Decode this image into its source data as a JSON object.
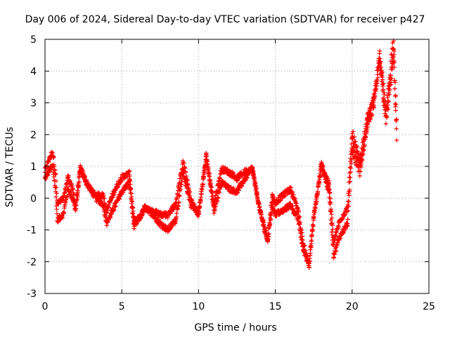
{
  "chart_data": {
    "type": "scatter",
    "title": "Day 006 of 2024, Sidereal Day-to-day VTEC variation (SDTVAR) for receiver p427",
    "xlabel": "GPS time / hours",
    "ylabel": "SDTVAR / TECUs",
    "xlim": [
      0,
      25
    ],
    "ylim": [
      -3,
      5
    ],
    "x_ticks": [
      "0",
      "5",
      "10",
      "15",
      "20",
      "25"
    ],
    "y_ticks": [
      "-3",
      "-2",
      "-1",
      "0",
      "1",
      "2",
      "3",
      "4",
      "5"
    ],
    "grid": true,
    "marker": "+",
    "series": [
      {
        "name": "SDTVAR",
        "color": "#ff0000",
        "profile": [
          [
            0.0,
            0.6
          ],
          [
            0.3,
            0.9
          ],
          [
            0.5,
            1.0
          ],
          [
            0.7,
            0.2
          ],
          [
            0.8,
            -0.7
          ],
          [
            1.2,
            -0.5
          ],
          [
            1.5,
            0.3
          ],
          [
            1.8,
            0.0
          ],
          [
            2.0,
            -0.4
          ],
          [
            2.3,
            0.9
          ],
          [
            2.8,
            0.4
          ],
          [
            3.3,
            0.0
          ],
          [
            3.8,
            -0.2
          ],
          [
            4.0,
            -0.8
          ],
          [
            4.5,
            -0.3
          ],
          [
            5.0,
            0.2
          ],
          [
            5.5,
            0.5
          ],
          [
            5.8,
            -0.9
          ],
          [
            6.2,
            -0.6
          ],
          [
            6.5,
            -0.3
          ],
          [
            7.0,
            -0.5
          ],
          [
            7.5,
            -0.8
          ],
          [
            8.0,
            -1.0
          ],
          [
            8.5,
            -0.7
          ],
          [
            9.0,
            0.8
          ],
          [
            9.5,
            -0.2
          ],
          [
            10.0,
            -0.5
          ],
          [
            10.5,
            1.3
          ],
          [
            11.0,
            -0.4
          ],
          [
            11.5,
            0.5
          ],
          [
            12.0,
            0.3
          ],
          [
            12.5,
            0.2
          ],
          [
            13.0,
            0.6
          ],
          [
            13.5,
            0.9
          ],
          [
            14.0,
            -0.4
          ],
          [
            14.5,
            -1.4
          ],
          [
            14.8,
            -0.2
          ],
          [
            15.0,
            -0.5
          ],
          [
            15.5,
            -0.4
          ],
          [
            16.0,
            -0.2
          ],
          [
            16.5,
            -0.7
          ],
          [
            16.8,
            -1.6
          ],
          [
            17.2,
            -2.1
          ],
          [
            17.5,
            -0.6
          ],
          [
            18.0,
            1.0
          ],
          [
            18.5,
            0.2
          ],
          [
            18.8,
            -1.8
          ],
          [
            19.2,
            -1.2
          ],
          [
            19.7,
            -0.8
          ],
          [
            20.0,
            1.6
          ],
          [
            20.5,
            0.9
          ],
          [
            21.0,
            2.4
          ],
          [
            21.4,
            3.0
          ],
          [
            21.8,
            4.4
          ],
          [
            22.2,
            2.4
          ],
          [
            22.7,
            4.5
          ],
          [
            22.9,
            1.8
          ]
        ]
      }
    ]
  }
}
